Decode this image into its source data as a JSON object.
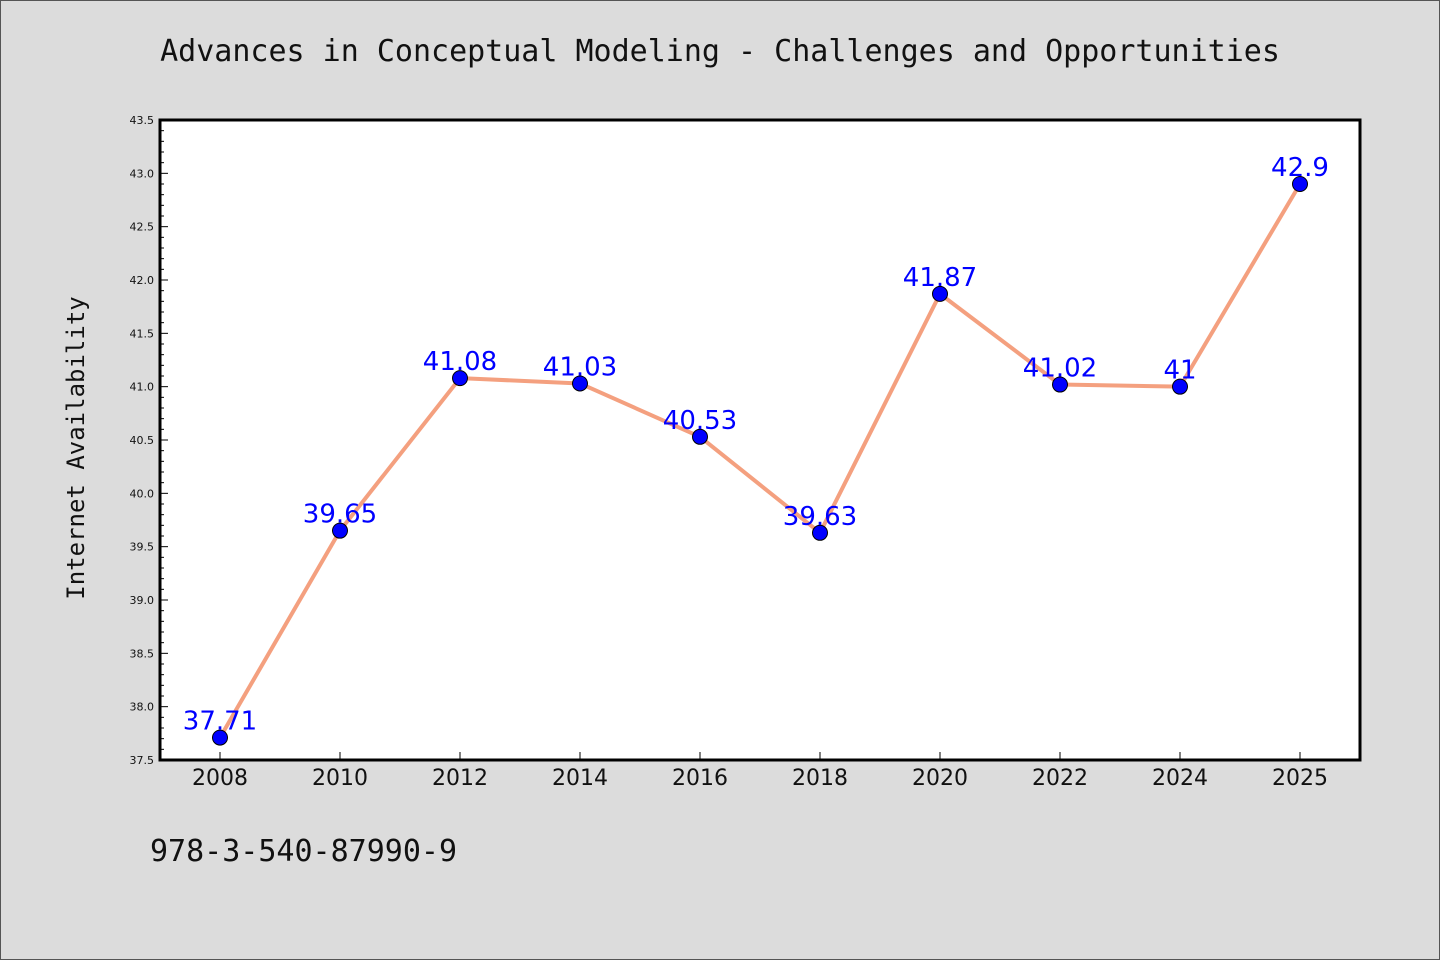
{
  "chart_data": {
    "type": "line",
    "title": "Advances in Conceptual Modeling - Challenges and Opportunities",
    "ylabel": "Internet Availability",
    "xlabel": "",
    "categories": [
      "2008",
      "2010",
      "2012",
      "2014",
      "2016",
      "2018",
      "2020",
      "2022",
      "2024",
      "2025"
    ],
    "values": [
      37.71,
      39.65,
      41.08,
      41.03,
      40.53,
      39.63,
      41.87,
      41.02,
      41,
      42.9
    ],
    "data_labels": [
      "37.71",
      "39.65",
      "41.08",
      "41.03",
      "40.53",
      "39.63",
      "41.87",
      "41.02",
      "41",
      "42.9"
    ],
    "ylim": [
      37.5,
      43.5
    ],
    "yticks": [
      "37.5",
      "38.0",
      "38.5",
      "39.0",
      "39.5",
      "40.0",
      "40.5",
      "41.0",
      "41.5",
      "42.0",
      "42.5",
      "43.0",
      "43.5"
    ],
    "grid": false,
    "legend": "none",
    "line_color": "#f4a07f",
    "marker_color": "#0000ff",
    "label_color": "#0000ff",
    "plot_background": "#ffffff",
    "page_background": "#dcdcdc"
  },
  "footer_text": "978-3-540-87990-9"
}
